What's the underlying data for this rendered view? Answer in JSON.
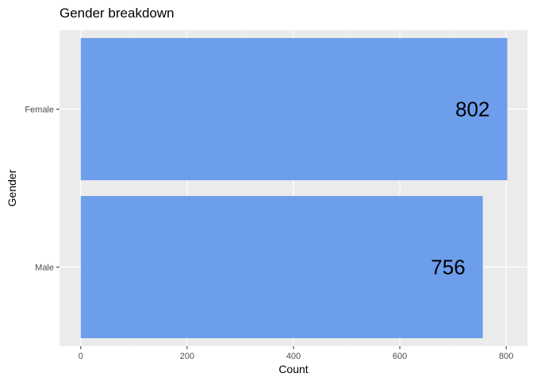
{
  "chart_data": {
    "type": "bar",
    "orientation": "horizontal",
    "title": "Gender breakdown",
    "xlabel": "Count",
    "ylabel": "Gender",
    "categories": [
      "Female",
      "Male"
    ],
    "values": [
      802,
      756
    ],
    "data_labels": [
      "802",
      "756"
    ],
    "xlim": [
      -40,
      840
    ],
    "xticks": [
      0,
      200,
      400,
      600,
      800
    ],
    "xtick_labels": [
      "0",
      "200",
      "400",
      "600",
      "800"
    ],
    "grid": true,
    "legend": "none",
    "colors": {
      "bar": "#6d9eeb",
      "panel_background": "#ebebeb",
      "grid_major": "#ffffff",
      "grid_minor": "#f5f5f5"
    }
  }
}
